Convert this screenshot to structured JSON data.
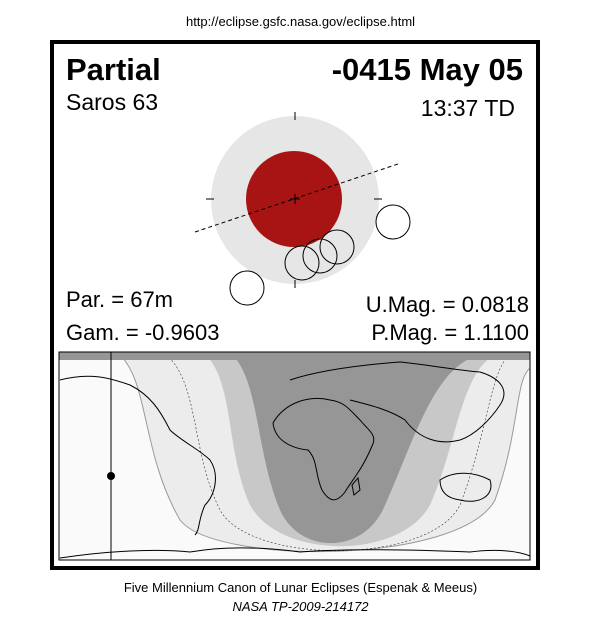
{
  "source_url": "http://eclipse.gsfc.nasa.gov/eclipse.html",
  "header": {
    "eclipse_type": "Partial",
    "date": "-0415 May 05",
    "saros": "Saros  63",
    "time": "13:37 TD"
  },
  "stats": {
    "par": "Par. =  67m",
    "gam": "Gam. = -0.9603",
    "umag": "U.Mag. = 0.0818",
    "pmag": "P.Mag. = 1.1100"
  },
  "colors": {
    "umbra": "#a81414",
    "penumbra": "#e6e6e6",
    "map_dark": "#969696",
    "map_mid": "#c8c8c8",
    "map_light": "#ececec",
    "map_lightest": "#fafafa"
  },
  "footer": {
    "line1": "Five Millennium Canon of Lunar Eclipses (Espenak & Meeus)",
    "line2": "NASA TP-2009-214172"
  }
}
